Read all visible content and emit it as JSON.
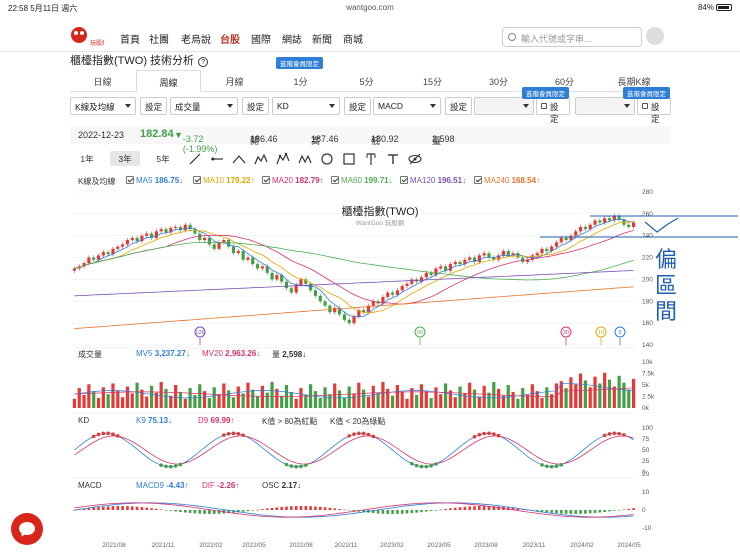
{
  "status_bar": {
    "time": "22:58",
    "date": "5月11日 週六",
    "url": "wantgoo.com",
    "battery": "84%"
  },
  "nav": {
    "logo_text": "玩股網",
    "items": [
      "首頁",
      "社團",
      "老烏說",
      "台股",
      "國際",
      "網誌",
      "新聞",
      "商城"
    ],
    "active_index": 3,
    "search_placeholder": "輸入代號或字串..."
  },
  "page_title": "櫃檯指數(TWO) 技術分析",
  "period_tabs": [
    "日線",
    "周線",
    "月線",
    "1分",
    "5分",
    "15分",
    "30分",
    "60分",
    "長期K線"
  ],
  "active_period": "周線",
  "vip_label": "進階會員限定",
  "indicator_selects": [
    "K線及均線",
    "成交量",
    "KD",
    "MACD",
    "",
    ""
  ],
  "setting_label": "設定",
  "quote": {
    "date": "2022-12-23",
    "close": "182.84",
    "change": "-3.72 (-1.99%)",
    "open_label": "開",
    "open": "186.46",
    "high_label": "高",
    "high": "187.46",
    "low_label": "低",
    "low": "180.92",
    "vol_label": "量",
    "volume": "2,598"
  },
  "range_buttons": [
    "1年",
    "3年",
    "5年"
  ],
  "active_range": "3年",
  "ma_legend": {
    "title": "K線及均線",
    "items": [
      {
        "label": "MA5",
        "value": "186.75",
        "dir": "↓",
        "color": "#2e7ed6"
      },
      {
        "label": "MA10",
        "value": "179.22",
        "dir": "↑",
        "color": "#e0a800"
      },
      {
        "label": "MA20",
        "value": "182.79",
        "dir": "↑",
        "color": "#d6336c"
      },
      {
        "label": "MA60",
        "value": "199.71",
        "dir": "↓",
        "color": "#4caf50"
      },
      {
        "label": "MA120",
        "value": "196.51",
        "dir": "↓",
        "color": "#7b4fb8"
      },
      {
        "label": "MA240",
        "value": "168.54",
        "dir": "↑",
        "color": "#e8742a"
      }
    ]
  },
  "chart_title": "櫃檯指數(TWO)",
  "watermark": "WantGoo 玩股網",
  "price_axis": [
    "280",
    "260",
    "240",
    "220",
    "200",
    "180",
    "160",
    "140"
  ],
  "event_markers": [
    "126",
    "60",
    "20",
    "10",
    "5"
  ],
  "volume_legend": {
    "title": "成交量",
    "mv5_label": "MV5",
    "mv5": "3,237.27",
    "mv5_dir": "↓",
    "mv20_label": "MV20",
    "mv20": "2,963.26",
    "mv20_dir": "↓",
    "vol_label": "量",
    "vol": "2,598",
    "vol_dir": "↓"
  },
  "volume_axis": [
    "10k",
    "7.5k",
    "5k",
    "2.5k",
    "0k"
  ],
  "kd_legend": {
    "title": "KD",
    "k_label": "K9",
    "k": "75.13",
    "k_dir": "↓",
    "d_label": "D9",
    "d": "69.99",
    "d_dir": "↑",
    "note1": "K值 > 80為紅點",
    "note2": "K值 < 20為綠點"
  },
  "kd_axis": [
    "100",
    "75",
    "50",
    "25",
    "0"
  ],
  "macd_legend": {
    "title": "MACD",
    "macd_label": "MACD9",
    "macd": "-4.43",
    "macd_dir": "↑",
    "dif_label": "DIF",
    "dif": "-2.26",
    "dif_dir": "↑",
    "osc_label": "OSC",
    "osc": "2.17",
    "osc_dir": "↓"
  },
  "macd_axis": [
    "20",
    "10",
    "0",
    "-10"
  ],
  "x_axis": [
    "2021/08",
    "2021/11",
    "2022/02",
    "2022/05",
    "2022/08",
    "2022/11",
    "2023/02",
    "2023/05",
    "2023/08",
    "2023/11",
    "2024/02",
    "2024/05"
  ],
  "handwritten_note": "偏區間",
  "colors": {
    "up": "#e53935",
    "down": "#43a047",
    "accent": "#c0392b",
    "vip": "#2e7ed6"
  }
}
